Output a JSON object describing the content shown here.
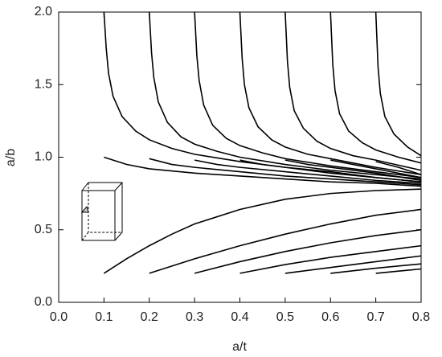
{
  "chart_data": {
    "type": "line",
    "x_label": "a/t",
    "y_label": "a/b",
    "xlim": [
      0,
      0.8
    ],
    "ylim": [
      0,
      2
    ],
    "xticks": [
      {
        "value": 0,
        "label": "0.0"
      },
      0.1,
      0.2,
      0.3,
      0.4,
      0.5,
      0.6,
      0.7,
      0.8
    ],
    "yticks": [
      {
        "value": 0,
        "label": "0.0"
      },
      0.5,
      {
        "value": 1,
        "label": "1.0"
      },
      1.5,
      {
        "value": 2,
        "label": "2.0"
      }
    ],
    "series": [
      {
        "color": "#000000",
        "x": [
          0.1,
          0.105,
          0.11,
          0.12,
          0.14,
          0.17,
          0.2,
          0.25,
          0.3,
          0.4,
          0.5,
          0.6,
          0.7,
          0.8
        ],
        "values": [
          2.0,
          1.75,
          1.58,
          1.42,
          1.28,
          1.18,
          1.12,
          1.06,
          1.02,
          0.97,
          0.93,
          0.89,
          0.86,
          0.83
        ]
      },
      {
        "color": "#000000",
        "x": [
          0.2,
          0.205,
          0.21,
          0.22,
          0.24,
          0.27,
          0.3,
          0.35,
          0.4,
          0.5,
          0.6,
          0.7,
          0.8
        ],
        "values": [
          2.0,
          1.72,
          1.55,
          1.38,
          1.24,
          1.14,
          1.09,
          1.04,
          1.0,
          0.95,
          0.91,
          0.88,
          0.85
        ]
      },
      {
        "color": "#000000",
        "x": [
          0.3,
          0.305,
          0.31,
          0.32,
          0.34,
          0.37,
          0.4,
          0.45,
          0.5,
          0.6,
          0.7,
          0.8
        ],
        "values": [
          2.0,
          1.7,
          1.53,
          1.36,
          1.22,
          1.13,
          1.08,
          1.03,
          0.99,
          0.94,
          0.9,
          0.86
        ]
      },
      {
        "color": "#000000",
        "x": [
          0.4,
          0.405,
          0.41,
          0.42,
          0.44,
          0.47,
          0.5,
          0.55,
          0.6,
          0.7,
          0.8
        ],
        "values": [
          2.0,
          1.68,
          1.5,
          1.34,
          1.21,
          1.12,
          1.07,
          1.02,
          0.99,
          0.93,
          0.88
        ]
      },
      {
        "color": "#000000",
        "x": [
          0.5,
          0.505,
          0.51,
          0.52,
          0.54,
          0.57,
          0.6,
          0.65,
          0.7,
          0.8
        ],
        "values": [
          2.0,
          1.66,
          1.48,
          1.32,
          1.2,
          1.11,
          1.06,
          1.01,
          0.98,
          0.91
        ]
      },
      {
        "color": "#000000",
        "x": [
          0.6,
          0.605,
          0.61,
          0.62,
          0.64,
          0.67,
          0.7,
          0.75,
          0.8
        ],
        "values": [
          2.0,
          1.64,
          1.46,
          1.3,
          1.18,
          1.1,
          1.05,
          1.0,
          0.96
        ]
      },
      {
        "color": "#000000",
        "x": [
          0.7,
          0.705,
          0.71,
          0.72,
          0.74,
          0.77,
          0.8
        ],
        "values": [
          2.0,
          1.62,
          1.44,
          1.28,
          1.16,
          1.07,
          1.01
        ]
      },
      {
        "color": "#000000",
        "x": [
          0.1,
          0.15,
          0.2,
          0.3,
          0.4,
          0.5,
          0.6,
          0.7,
          0.8
        ],
        "values": [
          1.0,
          0.95,
          0.92,
          0.89,
          0.87,
          0.85,
          0.83,
          0.82,
          0.8
        ]
      },
      {
        "color": "#000000",
        "x": [
          0.2,
          0.25,
          0.3,
          0.4,
          0.5,
          0.6,
          0.7,
          0.8
        ],
        "values": [
          0.99,
          0.95,
          0.93,
          0.9,
          0.87,
          0.85,
          0.83,
          0.81
        ]
      },
      {
        "color": "#000000",
        "x": [
          0.3,
          0.35,
          0.4,
          0.5,
          0.6,
          0.7,
          0.8
        ],
        "values": [
          0.98,
          0.95,
          0.93,
          0.9,
          0.87,
          0.84,
          0.82
        ]
      },
      {
        "color": "#000000",
        "x": [
          0.4,
          0.45,
          0.5,
          0.6,
          0.7,
          0.8
        ],
        "values": [
          0.98,
          0.95,
          0.93,
          0.9,
          0.86,
          0.83
        ]
      },
      {
        "color": "#000000",
        "x": [
          0.5,
          0.55,
          0.6,
          0.7,
          0.8
        ],
        "values": [
          0.98,
          0.95,
          0.93,
          0.89,
          0.84
        ]
      },
      {
        "color": "#000000",
        "x": [
          0.6,
          0.65,
          0.7,
          0.8
        ],
        "values": [
          0.98,
          0.95,
          0.92,
          0.86
        ]
      },
      {
        "color": "#000000",
        "x": [
          0.7,
          0.75,
          0.8
        ],
        "values": [
          0.97,
          0.93,
          0.88
        ]
      },
      {
        "color": "#000000",
        "x": [
          0.1,
          0.15,
          0.2,
          0.25,
          0.3,
          0.4,
          0.5,
          0.6,
          0.7,
          0.8
        ],
        "values": [
          0.2,
          0.3,
          0.39,
          0.47,
          0.54,
          0.64,
          0.71,
          0.75,
          0.77,
          0.78
        ]
      },
      {
        "color": "#000000",
        "x": [
          0.2,
          0.3,
          0.4,
          0.5,
          0.6,
          0.7,
          0.8
        ],
        "values": [
          0.2,
          0.3,
          0.39,
          0.47,
          0.54,
          0.6,
          0.64
        ]
      },
      {
        "color": "#000000",
        "x": [
          0.3,
          0.4,
          0.5,
          0.6,
          0.7,
          0.8
        ],
        "values": [
          0.2,
          0.28,
          0.35,
          0.41,
          0.46,
          0.5
        ]
      },
      {
        "color": "#000000",
        "x": [
          0.4,
          0.5,
          0.6,
          0.7,
          0.8
        ],
        "values": [
          0.2,
          0.26,
          0.31,
          0.35,
          0.39
        ]
      },
      {
        "color": "#000000",
        "x": [
          0.5,
          0.6,
          0.7,
          0.8
        ],
        "values": [
          0.2,
          0.24,
          0.28,
          0.32
        ]
      },
      {
        "color": "#000000",
        "x": [
          0.6,
          0.7,
          0.8
        ],
        "values": [
          0.2,
          0.235,
          0.265
        ]
      },
      {
        "color": "#000000",
        "x": [
          0.7,
          0.75,
          0.8
        ],
        "values": [
          0.2,
          0.215,
          0.23
        ]
      }
    ]
  }
}
